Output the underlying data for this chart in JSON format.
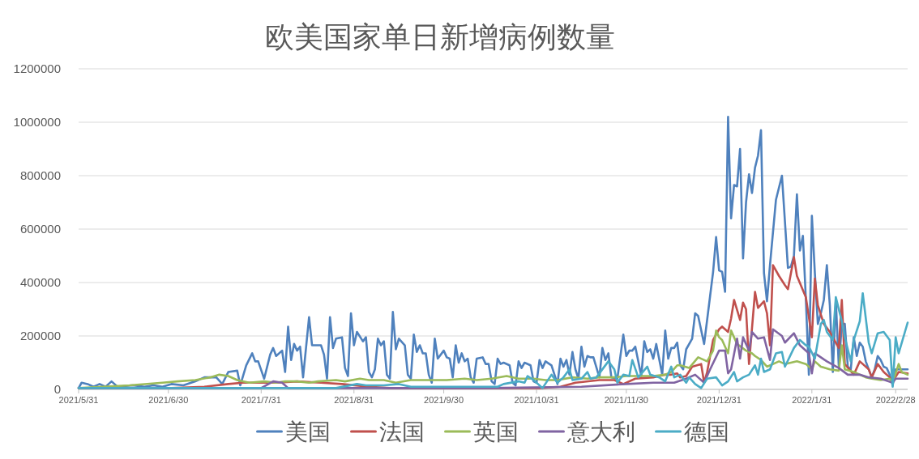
{
  "chart_data": {
    "type": "line",
    "title": "欧美国家单日新增病例数量",
    "xlim": [
      "2021-05-31",
      "2022-03-04"
    ],
    "xticks": [
      {
        "value": "2021-05-31",
        "label": "2021/5/31"
      },
      {
        "value": "2021-06-30",
        "label": "2021/6/30"
      },
      {
        "value": "2021-07-31",
        "label": "2021/7/31"
      },
      {
        "value": "2021-08-31",
        "label": "2021/8/31"
      },
      {
        "value": "2021-09-30",
        "label": "2021/9/30"
      },
      {
        "value": "2021-10-31",
        "label": "2021/10/31"
      },
      {
        "value": "2021-11-30",
        "label": "2021/11/30"
      },
      {
        "value": "2021-12-31",
        "label": "2021/12/31"
      },
      {
        "value": "2022-01-31",
        "label": "2022/1/31"
      },
      {
        "value": "2022-02-28",
        "label": "2022/2/28"
      }
    ],
    "ylim": [
      0,
      1200000
    ],
    "yticks": [
      0,
      200000,
      400000,
      600000,
      800000,
      1000000,
      1200000
    ],
    "grid": "y",
    "legend": "bottom",
    "series": [
      {
        "name": "美国",
        "color": "#4f81bd",
        "x": [
          "2021-05-31",
          "2021-06-01",
          "2021-06-03",
          "2021-06-05",
          "2021-06-07",
          "2021-06-09",
          "2021-06-11",
          "2021-06-13",
          "2021-06-18",
          "2021-06-22",
          "2021-06-25",
          "2021-06-28",
          "2021-07-01",
          "2021-07-05",
          "2021-07-09",
          "2021-07-12",
          "2021-07-16",
          "2021-07-18",
          "2021-07-20",
          "2021-07-23",
          "2021-07-24",
          "2021-07-26",
          "2021-07-28",
          "2021-07-29",
          "2021-07-30",
          "2021-08-01",
          "2021-08-03",
          "2021-08-04",
          "2021-08-05",
          "2021-08-07",
          "2021-08-08",
          "2021-08-09",
          "2021-08-10",
          "2021-08-11",
          "2021-08-12",
          "2021-08-13",
          "2021-08-14",
          "2021-08-16",
          "2021-08-17",
          "2021-08-20",
          "2021-08-21",
          "2021-08-22",
          "2021-08-23",
          "2021-08-24",
          "2021-08-25",
          "2021-08-27",
          "2021-08-28",
          "2021-08-29",
          "2021-08-30",
          "2021-08-31",
          "2021-09-01",
          "2021-09-03",
          "2021-09-04",
          "2021-09-05",
          "2021-09-06",
          "2021-09-07",
          "2021-09-08",
          "2021-09-09",
          "2021-09-10",
          "2021-09-11",
          "2021-09-12",
          "2021-09-13",
          "2021-09-14",
          "2021-09-15",
          "2021-09-17",
          "2021-09-18",
          "2021-09-19",
          "2021-09-20",
          "2021-09-21",
          "2021-09-22",
          "2021-09-23",
          "2021-09-24",
          "2021-09-25",
          "2021-09-26",
          "2021-09-27",
          "2021-09-28",
          "2021-09-30",
          "2021-10-01",
          "2021-10-02",
          "2021-10-03",
          "2021-10-04",
          "2021-10-05",
          "2021-10-06",
          "2021-10-07",
          "2021-10-08",
          "2021-10-09",
          "2021-10-10",
          "2021-10-11",
          "2021-10-13",
          "2021-10-14",
          "2021-10-15",
          "2021-10-16",
          "2021-10-17",
          "2021-10-18",
          "2021-10-19",
          "2021-10-20",
          "2021-10-22",
          "2021-10-23",
          "2021-10-24",
          "2021-10-25",
          "2021-10-26",
          "2021-10-27",
          "2021-10-29",
          "2021-10-30",
          "2021-10-31",
          "2021-11-01",
          "2021-11-02",
          "2021-11-03",
          "2021-11-05",
          "2021-11-07",
          "2021-11-08",
          "2021-11-09",
          "2021-11-10",
          "2021-11-11",
          "2021-11-12",
          "2021-11-13",
          "2021-11-14",
          "2021-11-15",
          "2021-11-16",
          "2021-11-17",
          "2021-11-18",
          "2021-11-19",
          "2021-11-21",
          "2021-11-22",
          "2021-11-23",
          "2021-11-24",
          "2021-11-25",
          "2021-11-27",
          "2021-11-29",
          "2021-11-30",
          "2021-12-01",
          "2021-12-02",
          "2021-12-03",
          "2021-12-05",
          "2021-12-06",
          "2021-12-07",
          "2021-12-08",
          "2021-12-09",
          "2021-12-10",
          "2021-12-12",
          "2021-12-13",
          "2021-12-14",
          "2021-12-15",
          "2021-12-16",
          "2021-12-17",
          "2021-12-18",
          "2021-12-19",
          "2021-12-20",
          "2021-12-22",
          "2021-12-23",
          "2021-12-24",
          "2021-12-26",
          "2021-12-28",
          "2021-12-29",
          "2021-12-30",
          "2021-12-31",
          "2022-01-01",
          "2022-01-02",
          "2022-01-03",
          "2022-01-04",
          "2022-01-05",
          "2022-01-06",
          "2022-01-07",
          "2022-01-08",
          "2022-01-09",
          "2022-01-10",
          "2022-01-11",
          "2022-01-12",
          "2022-01-13",
          "2022-01-14",
          "2022-01-15",
          "2022-01-16",
          "2022-01-17",
          "2022-01-19",
          "2022-01-21",
          "2022-01-23",
          "2022-01-24",
          "2022-01-25",
          "2022-01-26",
          "2022-01-27",
          "2022-01-28",
          "2022-01-29",
          "2022-01-30",
          "2022-01-31",
          "2022-02-01",
          "2022-02-02",
          "2022-02-03",
          "2022-02-04",
          "2022-02-05",
          "2022-02-06",
          "2022-02-07",
          "2022-02-08",
          "2022-02-09",
          "2022-02-10",
          "2022-02-11",
          "2022-02-12",
          "2022-02-13",
          "2022-02-14",
          "2022-02-15",
          "2022-02-16",
          "2022-02-17",
          "2022-02-18",
          "2022-02-20",
          "2022-02-21",
          "2022-02-22",
          "2022-02-23",
          "2022-02-24",
          "2022-02-25",
          "2022-02-26",
          "2022-02-27",
          "2022-02-28",
          "2022-03-02",
          "2022-03-04"
        ],
        "values": [
          5000,
          25000,
          20000,
          10000,
          20000,
          10000,
          30000,
          10000,
          15000,
          10000,
          15000,
          10000,
          20000,
          15000,
          30000,
          45000,
          45000,
          20000,
          65000,
          70000,
          15000,
          90000,
          135000,
          105000,
          105000,
          40000,
          130000,
          155000,
          125000,
          145000,
          65000,
          235000,
          110000,
          170000,
          145000,
          160000,
          45000,
          270000,
          165000,
          165000,
          130000,
          40000,
          270000,
          155000,
          190000,
          195000,
          80000,
          50000,
          285000,
          165000,
          215000,
          180000,
          195000,
          65000,
          45000,
          75000,
          190000,
          165000,
          180000,
          55000,
          40000,
          290000,
          150000,
          190000,
          165000,
          55000,
          40000,
          205000,
          140000,
          165000,
          135000,
          135000,
          55000,
          25000,
          190000,
          115000,
          145000,
          120000,
          115000,
          45000,
          165000,
          100000,
          135000,
          105000,
          115000,
          45000,
          25000,
          115000,
          120000,
          95000,
          95000,
          30000,
          20000,
          115000,
          95000,
          100000,
          90000,
          25000,
          15000,
          105000,
          80000,
          100000,
          90000,
          30000,
          25000,
          110000,
          80000,
          105000,
          90000,
          20000,
          115000,
          85000,
          110000,
          55000,
          140000,
          75000,
          40000,
          160000,
          85000,
          125000,
          120000,
          120000,
          45000,
          155000,
          110000,
          135000,
          45000,
          40000,
          205000,
          125000,
          145000,
          145000,
          160000,
          50000,
          180000,
          140000,
          150000,
          115000,
          170000,
          55000,
          220000,
          115000,
          155000,
          155000,
          175000,
          90000,
          75000,
          150000,
          190000,
          285000,
          275000,
          170000,
          350000,
          440000,
          570000,
          445000,
          440000,
          365000,
          1020000,
          640000,
          765000,
          760000,
          900000,
          490000,
          700000,
          805000,
          735000,
          830000,
          875000,
          970000,
          435000,
          330000,
          465000,
          710000,
          800000,
          455000,
          460000,
          500000,
          730000,
          520000,
          575000,
          335000,
          55000,
          650000,
          435000,
          245000,
          285000,
          335000,
          465000,
          315000,
          65000,
          335000,
          85000,
          245000,
          245000,
          85000,
          75000,
          195000,
          125000,
          175000,
          160000,
          105000,
          45000,
          75000,
          125000,
          110000,
          85000,
          80000,
          55000,
          15000,
          75000,
          75000,
          75000
        ]
      },
      {
        "name": "法国",
        "color": "#c0504d",
        "x": [
          "2021-05-31",
          "2021-06-15",
          "2021-07-01",
          "2021-07-12",
          "2021-07-20",
          "2021-07-25",
          "2021-08-05",
          "2021-08-12",
          "2021-08-20",
          "2021-08-27",
          "2021-09-05",
          "2021-09-12",
          "2021-10-15",
          "2021-11-01",
          "2021-11-08",
          "2021-11-13",
          "2021-11-21",
          "2021-11-26",
          "2021-11-29",
          "2021-12-03",
          "2021-12-09",
          "2021-12-13",
          "2021-12-15",
          "2021-12-17",
          "2021-12-18",
          "2021-12-20",
          "2021-12-22",
          "2021-12-25",
          "2021-12-26",
          "2021-12-27",
          "2021-12-29",
          "2021-12-31",
          "2022-01-01",
          "2022-01-03",
          "2022-01-04",
          "2022-01-05",
          "2022-01-07",
          "2022-01-08",
          "2022-01-09",
          "2022-01-10",
          "2022-01-12",
          "2022-01-13",
          "2022-01-15",
          "2022-01-16",
          "2022-01-17",
          "2022-01-18",
          "2022-01-20",
          "2022-01-22",
          "2022-01-23",
          "2022-01-25",
          "2022-01-26",
          "2022-01-29",
          "2022-01-31",
          "2022-02-01",
          "2022-02-02",
          "2022-02-04",
          "2022-02-06",
          "2022-02-09",
          "2022-02-10",
          "2022-02-11",
          "2022-02-14",
          "2022-02-16",
          "2022-02-19",
          "2022-02-20",
          "2022-02-22",
          "2022-02-24",
          "2022-02-26",
          "2022-02-27",
          "2022-03-01",
          "2022-03-04"
        ],
        "values": [
          5000,
          5000,
          5000,
          10000,
          20000,
          25000,
          25000,
          30000,
          25000,
          20000,
          10000,
          5000,
          5000,
          5000,
          10000,
          25000,
          35000,
          35000,
          20000,
          40000,
          45000,
          55000,
          55000,
          60000,
          45000,
          50000,
          85000,
          95000,
          25000,
          65000,
          185000,
          225000,
          235000,
          215000,
          265000,
          335000,
          260000,
          325000,
          300000,
          95000,
          365000,
          305000,
          330000,
          285000,
          165000,
          465000,
          425000,
          390000,
          375000,
          495000,
          425000,
          345000,
          195000,
          415000,
          315000,
          245000,
          215000,
          155000,
          335000,
          95000,
          55000,
          105000,
          75000,
          45000,
          95000,
          65000,
          45000,
          30000,
          65000,
          60000
        ]
      },
      {
        "name": "英国",
        "color": "#9bbb59",
        "x": [
          "2021-05-31",
          "2021-06-17",
          "2021-06-28",
          "2021-07-03",
          "2021-07-09",
          "2021-07-14",
          "2021-07-17",
          "2021-07-20",
          "2021-07-23",
          "2021-07-27",
          "2021-08-01",
          "2021-08-05",
          "2021-08-08",
          "2021-08-12",
          "2021-08-16",
          "2021-08-19",
          "2021-08-25",
          "2021-08-28",
          "2021-09-02",
          "2021-09-05",
          "2021-09-10",
          "2021-09-14",
          "2021-09-19",
          "2021-10-01",
          "2021-10-07",
          "2021-10-11",
          "2021-10-16",
          "2021-10-21",
          "2021-10-25",
          "2021-10-30",
          "2021-11-03",
          "2021-11-07",
          "2021-11-12",
          "2021-11-17",
          "2021-11-21",
          "2021-11-26",
          "2021-11-30",
          "2021-12-05",
          "2021-12-09",
          "2021-12-13",
          "2021-12-15",
          "2021-12-17",
          "2021-12-18",
          "2021-12-21",
          "2021-12-24",
          "2021-12-27",
          "2021-12-29",
          "2021-12-30",
          "2021-12-31",
          "2022-01-01",
          "2022-01-03",
          "2022-01-04",
          "2022-01-06",
          "2022-01-09",
          "2022-01-11",
          "2022-01-12",
          "2022-01-14",
          "2022-01-16",
          "2022-01-20",
          "2022-01-22",
          "2022-01-26",
          "2022-01-29",
          "2022-01-31",
          "2022-02-01",
          "2022-02-03",
          "2022-02-06",
          "2022-02-09",
          "2022-02-10",
          "2022-02-11",
          "2022-02-14",
          "2022-02-18",
          "2022-02-20",
          "2022-02-23",
          "2022-02-26",
          "2022-02-27",
          "2022-03-01",
          "2022-03-02",
          "2022-03-04"
        ],
        "values": [
          5000,
          15000,
          25000,
          30000,
          35000,
          45000,
          55000,
          50000,
          35000,
          25000,
          30000,
          25000,
          30000,
          30000,
          25000,
          30000,
          35000,
          30000,
          40000,
          35000,
          35000,
          25000,
          35000,
          35000,
          40000,
          35000,
          40000,
          50000,
          40000,
          40000,
          35000,
          35000,
          45000,
          40000,
          45000,
          45000,
          50000,
          50000,
          50000,
          55000,
          65000,
          90000,
          90000,
          80000,
          120000,
          105000,
          145000,
          220000,
          195000,
          185000,
          135000,
          220000,
          170000,
          145000,
          135000,
          125000,
          110000,
          85000,
          105000,
          95000,
          105000,
          95000,
          75000,
          105000,
          85000,
          75000,
          70000,
          165000,
          75000,
          65000,
          45000,
          40000,
          35000,
          40000,
          25000,
          95000,
          65000,
          55000
        ]
      },
      {
        "name": "意大利",
        "color": "#8064a2",
        "x": [
          "2021-05-31",
          "2021-07-31",
          "2021-08-04",
          "2021-08-07",
          "2021-08-09",
          "2021-10-15",
          "2021-11-15",
          "2021-11-30",
          "2021-12-09",
          "2021-12-13",
          "2021-12-16",
          "2021-12-20",
          "2021-12-23",
          "2021-12-26",
          "2021-12-28",
          "2021-12-31",
          "2022-01-02",
          "2022-01-03",
          "2022-01-04",
          "2022-01-06",
          "2022-01-07",
          "2022-01-08",
          "2022-01-10",
          "2022-01-11",
          "2022-01-13",
          "2022-01-15",
          "2022-01-17",
          "2022-01-18",
          "2022-01-21",
          "2022-01-22",
          "2022-01-25",
          "2022-01-27",
          "2022-01-30",
          "2022-01-31",
          "2022-02-01",
          "2022-02-05",
          "2022-02-09",
          "2022-02-12",
          "2022-02-16",
          "2022-02-19",
          "2022-02-23",
          "2022-02-27",
          "2022-02-28",
          "2022-03-04"
        ],
        "values": [
          5000,
          5000,
          30000,
          25000,
          5000,
          5000,
          10000,
          20000,
          25000,
          25000,
          25000,
          40000,
          55000,
          25000,
          75000,
          145000,
          145000,
          60000,
          75000,
          190000,
          115000,
          195000,
          145000,
          215000,
          190000,
          195000,
          110000,
          225000,
          200000,
          175000,
          210000,
          165000,
          135000,
          60000,
          135000,
          105000,
          80000,
          55000,
          55000,
          45000,
          40000,
          25000,
          40000,
          40000
        ]
      },
      {
        "name": "德国",
        "color": "#4bacc6",
        "x": [
          "2021-05-31",
          "2021-08-25",
          "2021-09-01",
          "2021-09-04",
          "2021-09-10",
          "2021-09-15",
          "2021-09-19",
          "2021-09-28",
          "2021-10-07",
          "2021-10-18",
          "2021-10-20",
          "2021-10-25",
          "2021-10-27",
          "2021-10-28",
          "2021-10-30",
          "2021-11-02",
          "2021-11-05",
          "2021-11-07",
          "2021-11-09",
          "2021-11-11",
          "2021-11-12",
          "2021-11-15",
          "2021-11-17",
          "2021-11-18",
          "2021-11-20",
          "2021-11-24",
          "2021-11-26",
          "2021-11-27",
          "2021-11-29",
          "2021-12-01",
          "2021-12-02",
          "2021-12-04",
          "2021-12-07",
          "2021-12-08",
          "2021-12-11",
          "2021-12-13",
          "2021-12-15",
          "2021-12-16",
          "2021-12-18",
          "2021-12-20",
          "2021-12-21",
          "2021-12-23",
          "2021-12-25",
          "2021-12-27",
          "2021-12-30",
          "2022-01-01",
          "2022-01-03",
          "2022-01-05",
          "2022-01-06",
          "2022-01-08",
          "2022-01-10",
          "2022-01-12",
          "2022-01-13",
          "2022-01-14",
          "2022-01-15",
          "2022-01-17",
          "2022-01-19",
          "2022-01-21",
          "2022-01-22",
          "2022-01-25",
          "2022-01-27",
          "2022-01-29",
          "2022-01-30",
          "2022-02-01",
          "2022-02-03",
          "2022-02-04",
          "2022-02-05",
          "2022-02-07",
          "2022-02-08",
          "2022-02-10",
          "2022-02-11",
          "2022-02-13",
          "2022-02-14",
          "2022-02-16",
          "2022-02-17",
          "2022-02-19",
          "2022-02-20",
          "2022-02-22",
          "2022-02-24",
          "2022-02-26",
          "2022-02-27",
          "2022-02-28",
          "2022-03-01",
          "2022-03-04"
        ],
        "values": [
          5000,
          5000,
          20000,
          15000,
          15000,
          20000,
          10000,
          10000,
          10000,
          10000,
          20000,
          30000,
          25000,
          50000,
          35000,
          5000,
          55000,
          25000,
          45000,
          75000,
          35000,
          40000,
          65000,
          40000,
          45000,
          105000,
          75000,
          25000,
          55000,
          50000,
          110000,
          45000,
          85000,
          55000,
          45000,
          30000,
          85000,
          45000,
          55000,
          25000,
          45000,
          20000,
          5000,
          40000,
          45000,
          15000,
          30000,
          65000,
          30000,
          45000,
          55000,
          90000,
          55000,
          115000,
          65000,
          75000,
          135000,
          140000,
          85000,
          155000,
          185000,
          165000,
          160000,
          115000,
          245000,
          260000,
          215000,
          185000,
          345000,
          255000,
          195000,
          105000,
          185000,
          255000,
          360000,
          175000,
          135000,
          210000,
          215000,
          185000,
          10000,
          195000,
          135000,
          250000
        ]
      }
    ]
  }
}
